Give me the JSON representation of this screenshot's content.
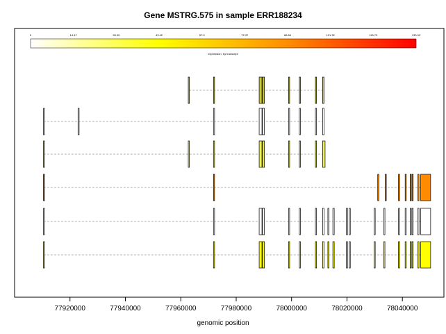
{
  "chart_data": {
    "type": "gene-structure",
    "title": "Gene MSTRG.575 in sample ERR188234",
    "xlabel": "genomic position",
    "xlim": [
      77900000,
      78055000
    ],
    "x_ticks": [
      77920000,
      77940000,
      77960000,
      77980000,
      78000000,
      78020000,
      78040000
    ],
    "x_tick_labels": [
      "77920000",
      "77940000",
      "77960000",
      "77980000",
      "78000000",
      "78020000",
      "78040000"
    ],
    "colorbar": {
      "label": "expression, by transcript",
      "min": 0,
      "max": 130.92,
      "colors": [
        "#ffffff",
        "#ffff00",
        "#ff8c00",
        "#ff0000"
      ],
      "ticks": [
        "0",
        "14.47",
        "28.95",
        "43.42",
        "57.9",
        "72.37",
        "86.84",
        "101.32",
        "115.79",
        "130.92"
      ]
    },
    "transcripts": [
      {
        "color": "#c8c832",
        "start": 77963000,
        "end": 78011500,
        "exons": [
          [
            77962700,
            77963100
          ],
          [
            77971800,
            77972200
          ],
          [
            77988300,
            77989300
          ],
          [
            77989500,
            77990200
          ],
          [
            77998900,
            77999300
          ],
          [
            78002800,
            78003200
          ],
          [
            78008600,
            78009000
          ],
          [
            78011200,
            78011700
          ]
        ]
      },
      {
        "color": "#ffffff",
        "start": 77910500,
        "end": 78011500,
        "exons": [
          [
            77910400,
            77910800
          ],
          [
            77922900,
            77923300
          ],
          [
            77971800,
            77972200
          ],
          [
            77988300,
            77989300
          ],
          [
            77989500,
            77990200
          ],
          [
            77998900,
            77999300
          ],
          [
            78002800,
            78003200
          ],
          [
            78008600,
            78009000
          ],
          [
            78011200,
            78011700
          ]
        ]
      },
      {
        "color": "#f0f04a",
        "start": 77910500,
        "end": 78011500,
        "exons": [
          [
            77910400,
            77910800
          ],
          [
            77962700,
            77963100
          ],
          [
            77971800,
            77972200
          ],
          [
            77988300,
            77989300
          ],
          [
            77989500,
            77990200
          ],
          [
            77998900,
            77999300
          ],
          [
            78002800,
            78003200
          ],
          [
            78008600,
            78009000
          ],
          [
            78011200,
            78012100
          ]
        ]
      },
      {
        "color": "#ff8c00",
        "start": 77910500,
        "end": 78050000,
        "exons": [
          [
            77910400,
            77910800
          ],
          [
            77971800,
            77972200
          ],
          [
            78031100,
            78031500
          ],
          [
            78033800,
            78034200
          ],
          [
            78038600,
            78039000
          ],
          [
            78041000,
            78041400
          ],
          [
            78042800,
            78043200
          ],
          [
            78043500,
            78043900
          ],
          [
            78045600,
            78046000
          ],
          [
            78046600,
            78050200
          ]
        ]
      },
      {
        "color": "#ffffff",
        "start": 77910500,
        "end": 78050000,
        "exons": [
          [
            77910400,
            77910800
          ],
          [
            77971800,
            77972200
          ],
          [
            77988300,
            77989300
          ],
          [
            77989500,
            77990200
          ],
          [
            77998900,
            77999300
          ],
          [
            78002800,
            78003200
          ],
          [
            78008600,
            78009000
          ],
          [
            78011200,
            78011700
          ],
          [
            78013100,
            78013500
          ],
          [
            78014900,
            78015400
          ],
          [
            78019800,
            78020200
          ],
          [
            78020800,
            78021200
          ],
          [
            78029800,
            78030200
          ],
          [
            78033300,
            78033700
          ],
          [
            78038600,
            78039000
          ],
          [
            78041000,
            78041400
          ],
          [
            78042800,
            78043200
          ],
          [
            78043500,
            78043900
          ],
          [
            78045600,
            78046000
          ],
          [
            78046600,
            78050200
          ]
        ]
      },
      {
        "color": "#ffff00",
        "start": 77910500,
        "end": 78050000,
        "exons": [
          [
            77910400,
            77910800
          ],
          [
            77971800,
            77972200
          ],
          [
            77988300,
            77989300
          ],
          [
            77989500,
            77990200
          ],
          [
            77998900,
            77999300
          ],
          [
            78002800,
            78003200
          ],
          [
            78008600,
            78009000
          ],
          [
            78011200,
            78011700
          ],
          [
            78013100,
            78013500
          ],
          [
            78014900,
            78015400
          ],
          [
            78019800,
            78020200
          ],
          [
            78020800,
            78021200
          ],
          [
            78029800,
            78030200
          ],
          [
            78033300,
            78033700
          ],
          [
            78038600,
            78039000
          ],
          [
            78041000,
            78041400
          ],
          [
            78042800,
            78043200
          ],
          [
            78043500,
            78043900
          ],
          [
            78045600,
            78046000
          ],
          [
            78046600,
            78050200
          ]
        ]
      }
    ]
  }
}
